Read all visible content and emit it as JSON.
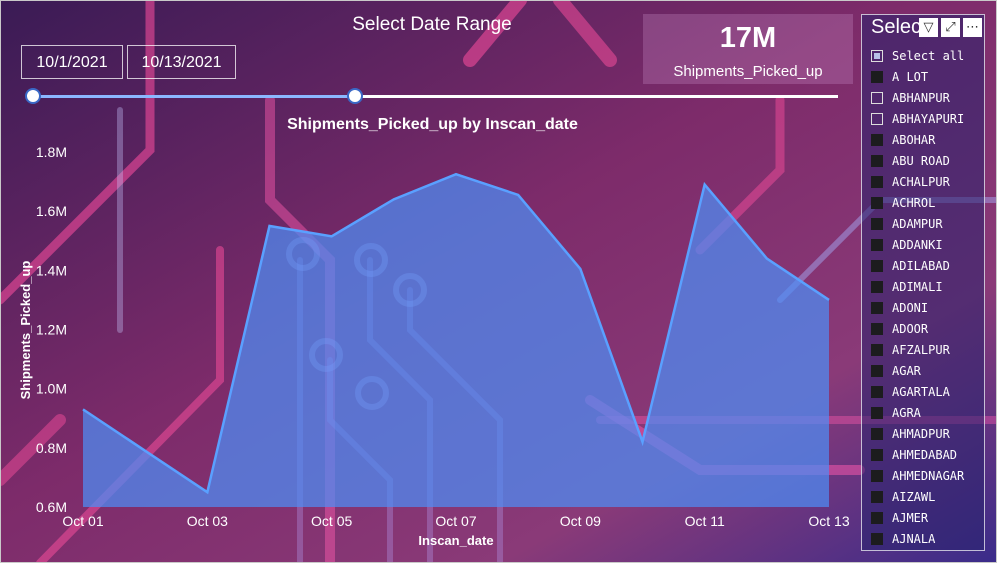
{
  "date_slicer": {
    "title": "Select Date Range",
    "start": "10/1/2021",
    "end": "10/13/2021",
    "range_fraction": [
      0.0,
      0.4
    ]
  },
  "kpi": {
    "value": "17M",
    "label": "Shipments_Picked_up"
  },
  "chart_data": {
    "type": "area",
    "title": "Shipments_Picked_up by Inscan_date",
    "xlabel": "Inscan_date",
    "ylabel": "Shipments_Picked_up",
    "x": [
      "Oct 01",
      "Oct 02",
      "Oct 03",
      "Oct 04",
      "Oct 05",
      "Oct 06",
      "Oct 07",
      "Oct 08",
      "Oct 09",
      "Oct 10",
      "Oct 11",
      "Oct 12",
      "Oct 13"
    ],
    "x_tick_labels": [
      "Oct 01",
      "Oct 03",
      "Oct 05",
      "Oct 07",
      "Oct 09",
      "Oct 11",
      "Oct 13"
    ],
    "values": [
      930000,
      790000,
      650000,
      1550000,
      1515000,
      1640000,
      1725000,
      1655000,
      1405000,
      820000,
      1690000,
      1440000,
      1300000
    ],
    "ylim": [
      600000,
      1800000
    ],
    "y_ticks": [
      {
        "value": 600000,
        "label": "0.6M"
      },
      {
        "value": 800000,
        "label": "0.8M"
      },
      {
        "value": 1000000,
        "label": "1.0M"
      },
      {
        "value": 1200000,
        "label": "1.2M"
      },
      {
        "value": 1400000,
        "label": "1.4M"
      },
      {
        "value": 1600000,
        "label": "1.6M"
      },
      {
        "value": 1800000,
        "label": "1.8M"
      }
    ],
    "grid": false,
    "color": "#4e8ef5"
  },
  "slicer": {
    "title": "Select",
    "tools": {
      "filter": "filter-icon",
      "focus": "focus-mode-icon",
      "more": "more-options-icon"
    },
    "items": [
      {
        "label": "Select all",
        "state": "partial"
      },
      {
        "label": "A LOT",
        "state": "filled"
      },
      {
        "label": "ABHANPUR",
        "state": "empty"
      },
      {
        "label": "ABHAYAPURI",
        "state": "empty"
      },
      {
        "label": "ABOHAR",
        "state": "filled"
      },
      {
        "label": "ABU ROAD",
        "state": "filled"
      },
      {
        "label": "ACHALPUR",
        "state": "filled"
      },
      {
        "label": "ACHROL",
        "state": "filled"
      },
      {
        "label": "ADAMPUR",
        "state": "filled"
      },
      {
        "label": "ADDANKI",
        "state": "filled"
      },
      {
        "label": "ADILABAD",
        "state": "filled"
      },
      {
        "label": "ADIMALI",
        "state": "filled"
      },
      {
        "label": "ADONI",
        "state": "filled"
      },
      {
        "label": "ADOOR",
        "state": "filled"
      },
      {
        "label": "AFZALPUR",
        "state": "filled"
      },
      {
        "label": "AGAR",
        "state": "filled"
      },
      {
        "label": "AGARTALA",
        "state": "filled"
      },
      {
        "label": "AGRA",
        "state": "filled"
      },
      {
        "label": "AHMADPUR",
        "state": "filled"
      },
      {
        "label": "AHMEDABAD",
        "state": "filled"
      },
      {
        "label": "AHMEDNAGAR",
        "state": "filled"
      },
      {
        "label": "AIZAWL",
        "state": "filled"
      },
      {
        "label": "AJMER",
        "state": "filled"
      },
      {
        "label": "AJNALA",
        "state": "filled"
      }
    ]
  }
}
